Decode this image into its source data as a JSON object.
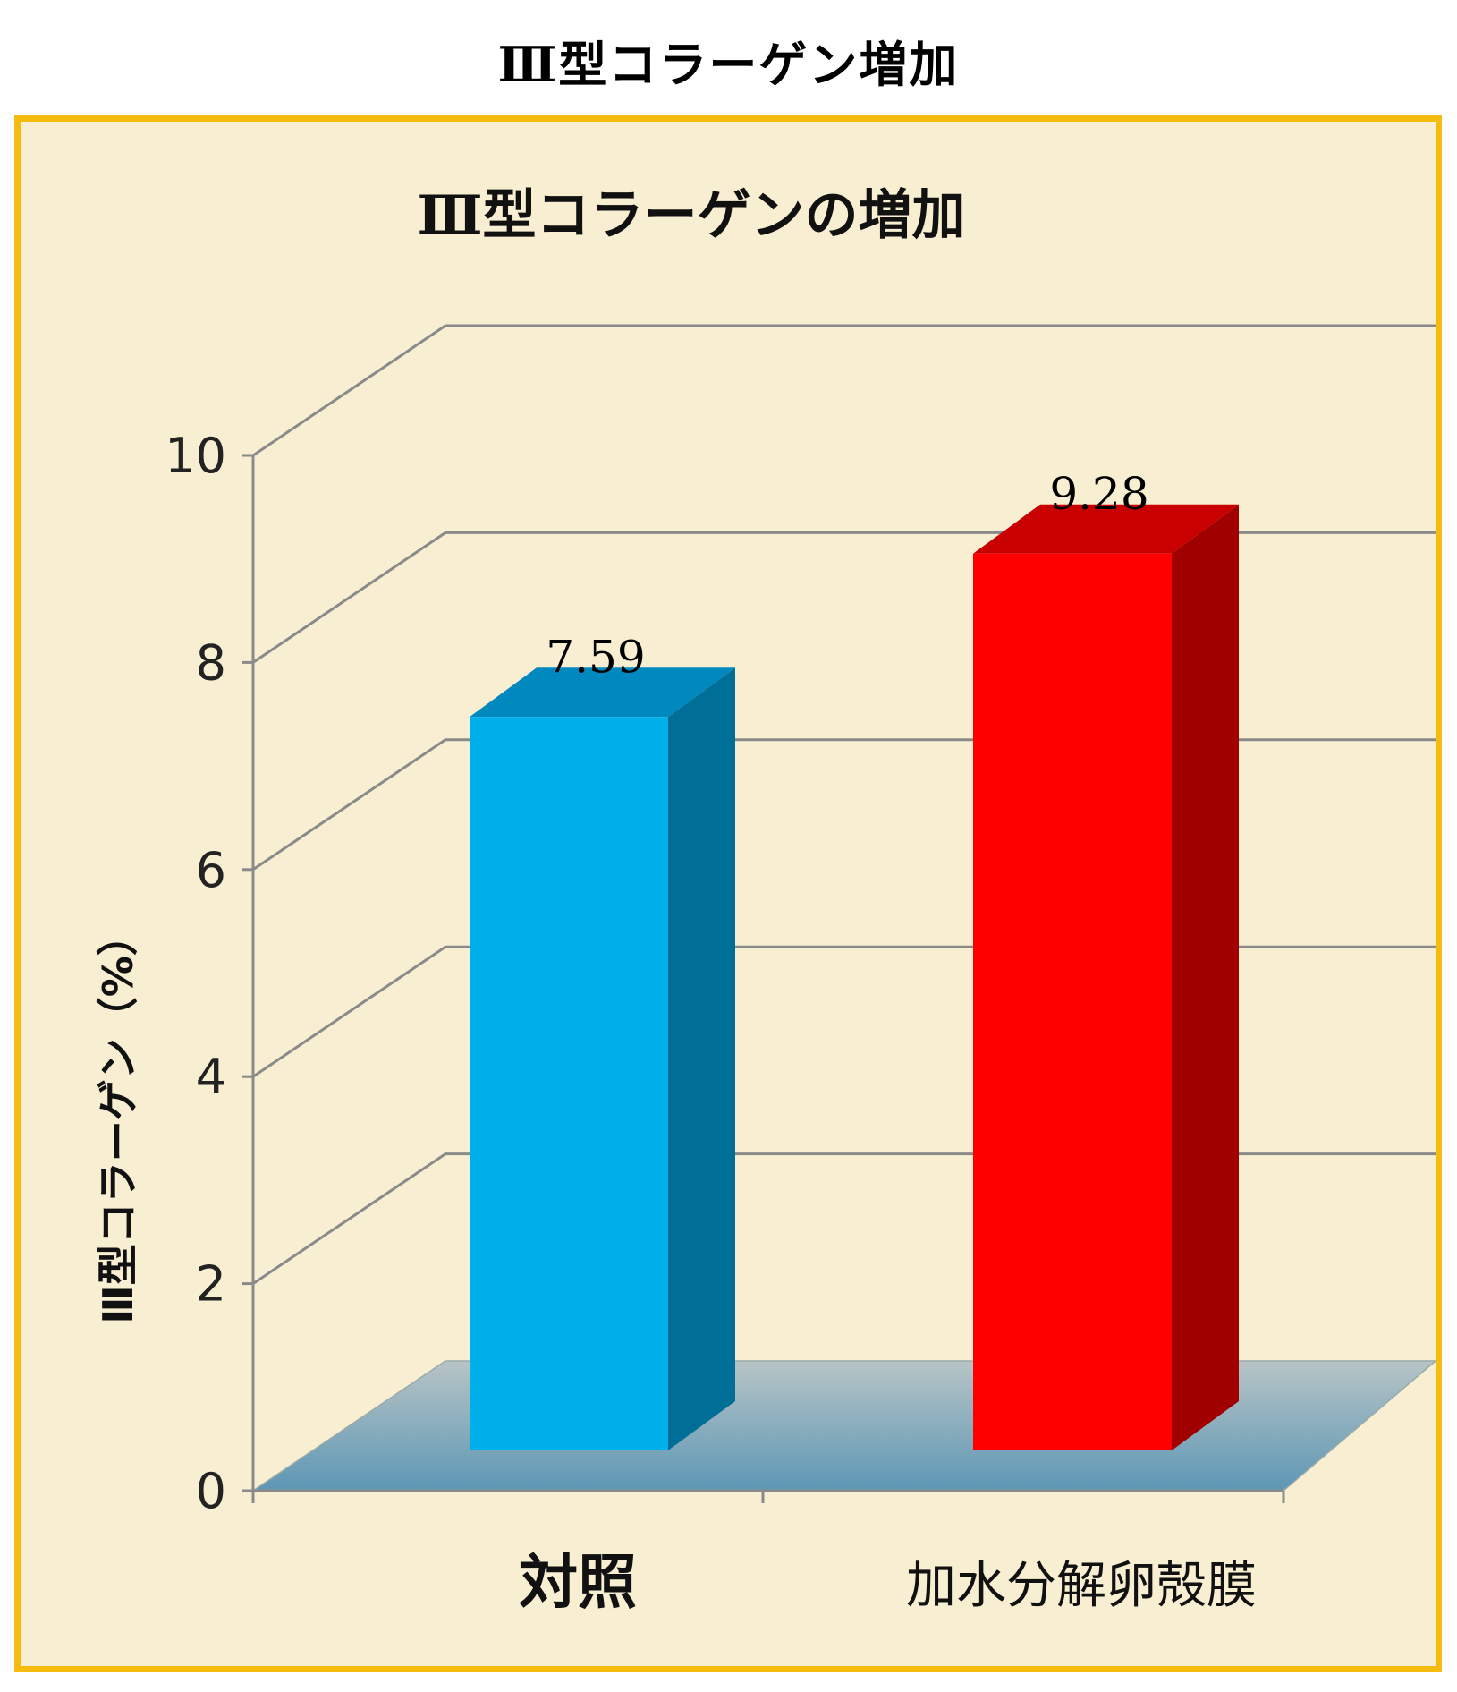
{
  "page_heading": "Ⅲ型コラーゲン増加",
  "colors": {
    "frame_border": "#f5bc0f",
    "frame_background": "#f8eed2",
    "grid": "#8a8a8a",
    "floor": "#6f9fb8",
    "bar_control_front": "#00b0ea",
    "bar_control_side": "#006f98",
    "bar_control_top": "#0088bf",
    "bar_treated_front": "#ff0000",
    "bar_treated_side": "#a00000",
    "bar_treated_top": "#c80000"
  },
  "chart_data": {
    "type": "bar",
    "style": "3d-column",
    "title": "Ⅲ型コラーゲンの増加",
    "xlabel": "",
    "ylabel": "Ⅲ型コラーゲン（%）",
    "categories": [
      "対照",
      "加水分解卵殻膜"
    ],
    "values": [
      7.59,
      9.28
    ],
    "data_labels": [
      "7.59",
      "9.28"
    ],
    "ylim": [
      0,
      10
    ],
    "yticks": [
      "0",
      "2",
      "4",
      "6",
      "8",
      "10"
    ],
    "grid": true,
    "legend": "none"
  }
}
